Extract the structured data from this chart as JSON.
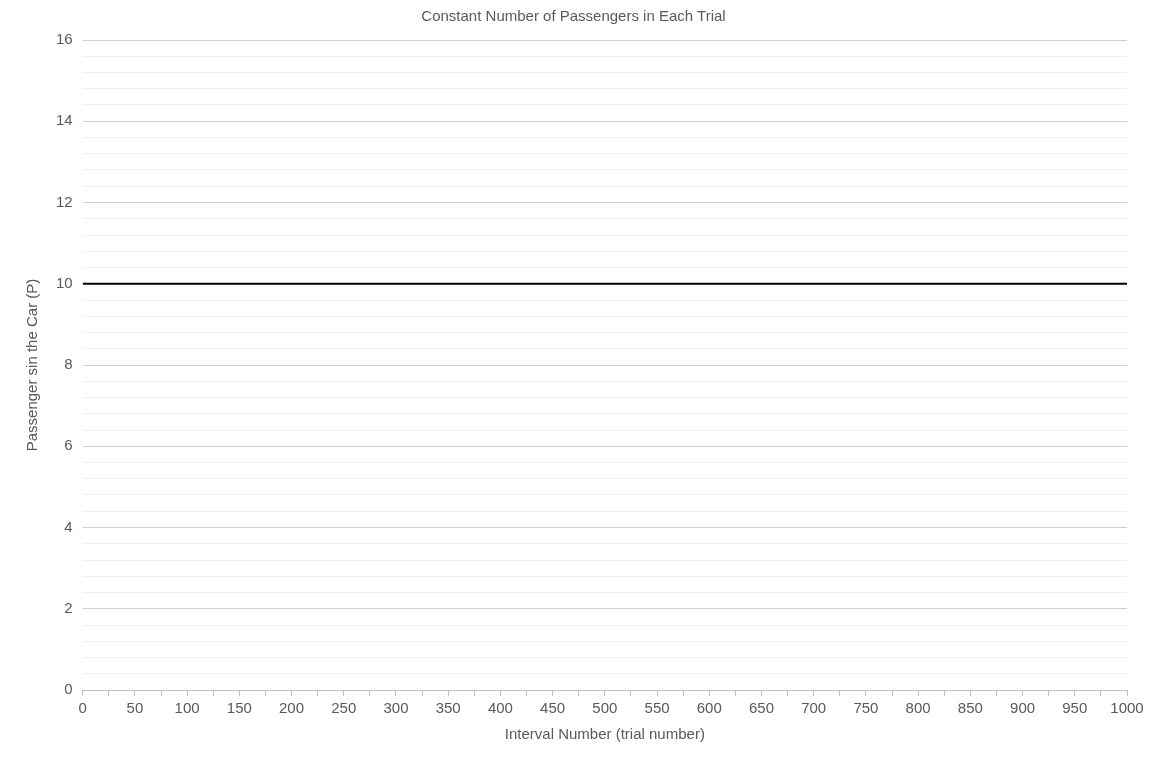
{
  "chart_data": {
    "type": "line",
    "title": "Constant Number of Passengers in Each Trial",
    "xlabel": "Interval Number (trial number)",
    "ylabel": "Passenger sin the Car (P)",
    "series": [
      {
        "color": "#000000",
        "x": [
          0,
          1000
        ],
        "values": [
          10,
          10
        ]
      }
    ],
    "xlim": [
      0,
      1000
    ],
    "xticks": [
      0,
      {
        "value": 25,
        "label": null
      },
      50,
      {
        "value": 75,
        "label": null
      },
      100,
      {
        "value": 125,
        "label": null
      },
      150,
      {
        "value": 175,
        "label": null
      },
      200,
      {
        "value": 225,
        "label": null
      },
      250,
      {
        "value": 275,
        "label": null
      },
      300,
      {
        "value": 325,
        "label": null
      },
      350,
      {
        "value": 375,
        "label": null
      },
      400,
      {
        "value": 425,
        "label": null
      },
      450,
      {
        "value": 475,
        "label": null
      },
      500,
      {
        "value": 525,
        "label": null
      },
      550,
      {
        "value": 575,
        "label": null
      },
      600,
      {
        "value": 625,
        "label": null
      },
      650,
      {
        "value": 675,
        "label": null
      },
      700,
      {
        "value": 725,
        "label": null
      },
      750,
      {
        "value": 775,
        "label": null
      },
      800,
      {
        "value": 825,
        "label": null
      },
      850,
      {
        "value": 875,
        "label": null
      },
      900,
      {
        "value": 925,
        "label": null
      },
      950,
      {
        "value": 975,
        "label": null
      },
      1000
    ],
    "ylim": [
      0,
      16
    ],
    "yticks": [
      0,
      {
        "value": 0.4,
        "label": null
      },
      {
        "value": 0.8,
        "label": null
      },
      {
        "value": 1.2,
        "label": null
      },
      {
        "value": 1.6,
        "label": null
      },
      2,
      {
        "value": 2.4,
        "label": null
      },
      {
        "value": 2.8,
        "label": null
      },
      {
        "value": 3.2,
        "label": null
      },
      {
        "value": 3.6,
        "label": null
      },
      4,
      {
        "value": 4.4,
        "label": null
      },
      {
        "value": 4.8,
        "label": null
      },
      {
        "value": 5.2,
        "label": null
      },
      {
        "value": 5.6,
        "label": null
      },
      6,
      {
        "value": 6.4,
        "label": null
      },
      {
        "value": 6.8,
        "label": null
      },
      {
        "value": 7.2,
        "label": null
      },
      {
        "value": 7.6,
        "label": null
      },
      8,
      {
        "value": 8.4,
        "label": null
      },
      {
        "value": 8.8,
        "label": null
      },
      {
        "value": 9.2,
        "label": null
      },
      {
        "value": 9.6,
        "label": null
      },
      10,
      {
        "value": 10.4,
        "label": null
      },
      {
        "value": 10.8,
        "label": null
      },
      {
        "value": 11.2,
        "label": null
      },
      {
        "value": 11.6,
        "label": null
      },
      12,
      {
        "value": 12.4,
        "label": null
      },
      {
        "value": 12.8,
        "label": null
      },
      {
        "value": 13.2,
        "label": null
      },
      {
        "value": 13.6,
        "label": null
      },
      14,
      {
        "value": 14.4,
        "label": null
      },
      {
        "value": 14.8,
        "label": null
      },
      {
        "value": 15.2,
        "label": null
      },
      {
        "value": 15.6,
        "label": null
      },
      16
    ],
    "grid": "y",
    "marker": "none",
    "line_style": "solid"
  }
}
